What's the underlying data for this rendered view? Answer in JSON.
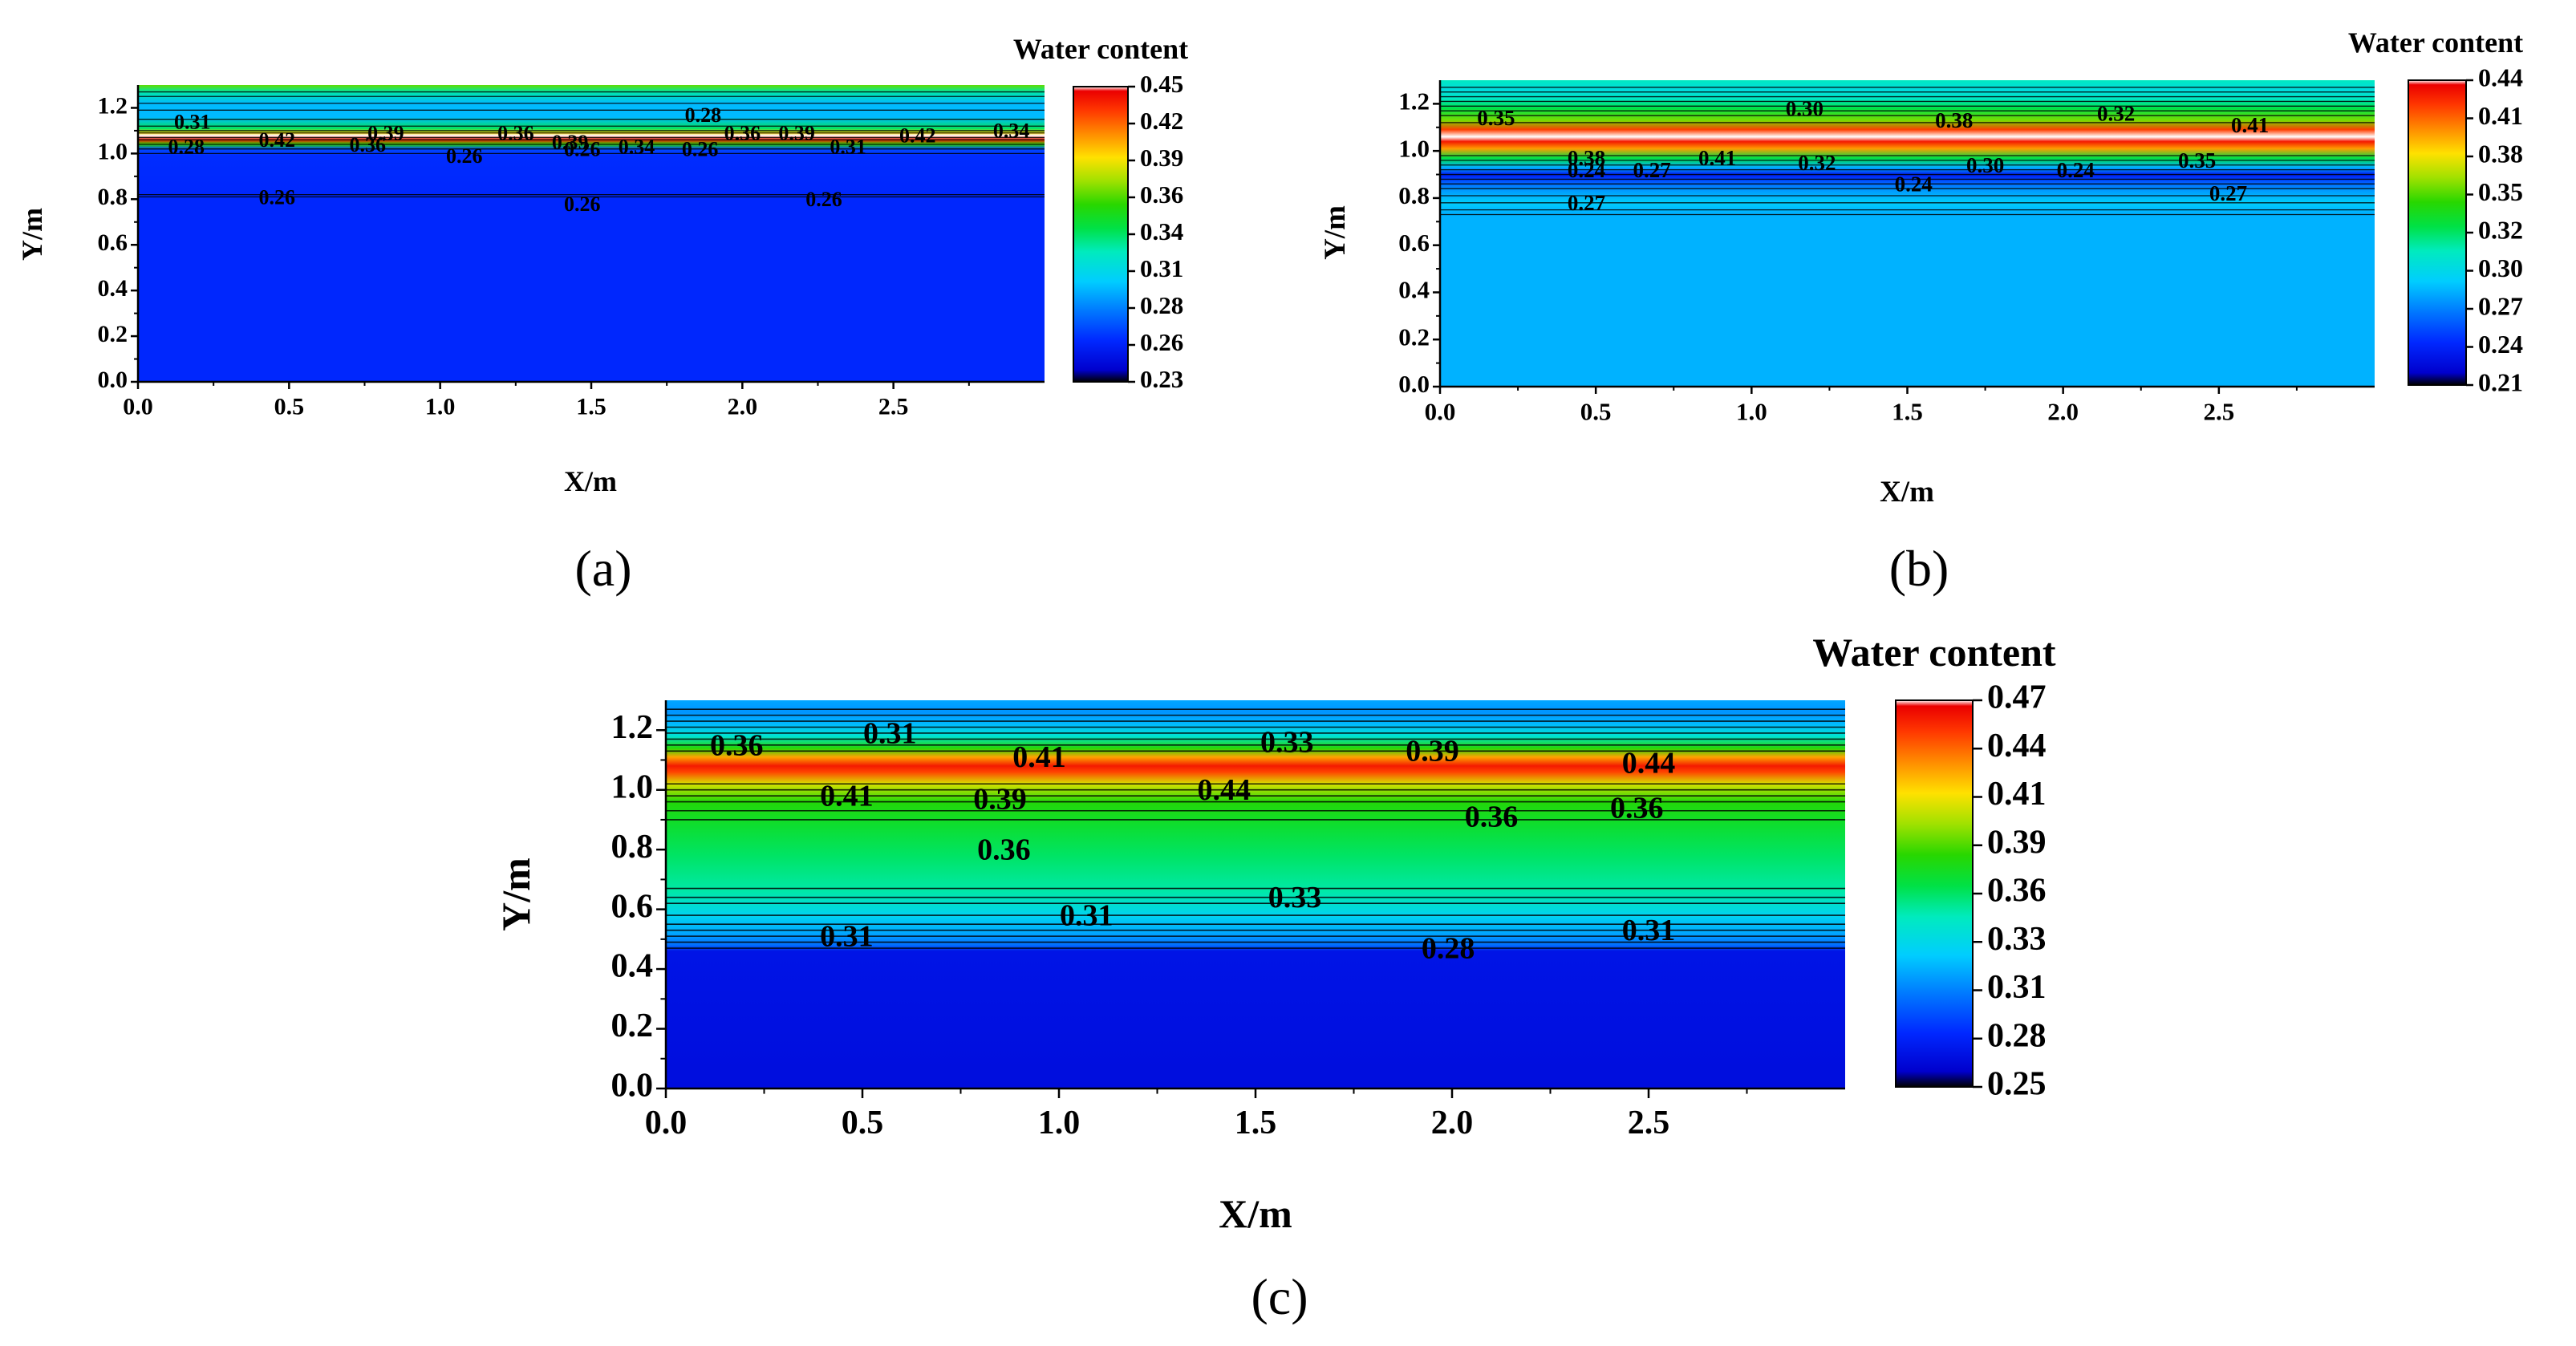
{
  "chart_data": [
    {
      "type": "heatmap",
      "panel": "(a)",
      "title": "",
      "xlabel": "X/m",
      "ylabel": "Y/m",
      "xlim": [
        0,
        3.0
      ],
      "ylim": [
        0,
        1.3
      ],
      "xticks": [
        "0.0",
        "0.5",
        "1.0",
        "1.5",
        "2.0",
        "2.5"
      ],
      "yticks": [
        "0.0",
        "0.2",
        "0.4",
        "0.6",
        "0.8",
        "1.0",
        "1.2"
      ],
      "colorbar": {
        "title": "Water content",
        "min": 0.23,
        "max": 0.45,
        "ticks": [
          "0.45",
          "0.42",
          "0.39",
          "0.36",
          "0.34",
          "0.31",
          "0.28",
          "0.26",
          "0.23"
        ]
      },
      "profile": [
        {
          "y": 0.0,
          "v": 0.26
        },
        {
          "y": 0.8,
          "v": 0.26
        },
        {
          "y": 0.81,
          "v": 0.262
        },
        {
          "y": 0.82,
          "v": 0.26
        },
        {
          "y": 0.99,
          "v": 0.262
        },
        {
          "y": 1.02,
          "v": 0.27
        },
        {
          "y": 1.04,
          "v": 0.36
        },
        {
          "y": 1.06,
          "v": 0.44
        },
        {
          "y": 1.08,
          "v": 0.45
        },
        {
          "y": 1.09,
          "v": 0.4
        },
        {
          "y": 1.11,
          "v": 0.34
        },
        {
          "y": 1.16,
          "v": 0.3
        },
        {
          "y": 1.22,
          "v": 0.3
        },
        {
          "y": 1.27,
          "v": 0.33
        },
        {
          "y": 1.3,
          "v": 0.37
        }
      ],
      "contour_levels": [
        0.81,
        0.82,
        1.0,
        1.02,
        1.04,
        1.06,
        1.07,
        1.09,
        1.1,
        1.12,
        1.15,
        1.19,
        1.22,
        1.25,
        1.27
      ],
      "labels": [
        {
          "text": "0.31",
          "x": 0.18,
          "y": 1.13
        },
        {
          "text": "0.28",
          "x": 0.16,
          "y": 1.02
        },
        {
          "text": "0.42",
          "x": 0.46,
          "y": 1.05
        },
        {
          "text": "0.39",
          "x": 0.82,
          "y": 1.08
        },
        {
          "text": "0.36",
          "x": 0.76,
          "y": 1.03
        },
        {
          "text": "0.26",
          "x": 1.08,
          "y": 0.98
        },
        {
          "text": "0.36",
          "x": 1.25,
          "y": 1.08
        },
        {
          "text": "0.39",
          "x": 1.43,
          "y": 1.04
        },
        {
          "text": "0.26",
          "x": 1.47,
          "y": 1.01
        },
        {
          "text": "0.34",
          "x": 1.65,
          "y": 1.02
        },
        {
          "text": "0.26",
          "x": 1.86,
          "y": 1.01
        },
        {
          "text": "0.28",
          "x": 1.87,
          "y": 1.16
        },
        {
          "text": "0.36",
          "x": 2.0,
          "y": 1.08
        },
        {
          "text": "0.39",
          "x": 2.18,
          "y": 1.08
        },
        {
          "text": "0.31",
          "x": 2.35,
          "y": 1.02
        },
        {
          "text": "0.42",
          "x": 2.58,
          "y": 1.07
        },
        {
          "text": "0.34",
          "x": 2.89,
          "y": 1.09
        },
        {
          "text": "0.26",
          "x": 0.46,
          "y": 0.8
        },
        {
          "text": "0.26",
          "x": 1.47,
          "y": 0.77
        },
        {
          "text": "0.26",
          "x": 2.27,
          "y": 0.79
        }
      ]
    },
    {
      "type": "heatmap",
      "panel": "(b)",
      "title": "",
      "xlabel": "X/m",
      "ylabel": "Y/m",
      "xlim": [
        0,
        3.0
      ],
      "ylim": [
        0,
        1.3
      ],
      "xticks": [
        "0.0",
        "0.5",
        "1.0",
        "1.5",
        "2.0",
        "2.5"
      ],
      "yticks": [
        "0.0",
        "0.2",
        "0.4",
        "0.6",
        "0.8",
        "1.0",
        "1.2"
      ],
      "colorbar": {
        "title": "Water content",
        "min": 0.21,
        "max": 0.44,
        "ticks": [
          "0.44",
          "0.41",
          "0.38",
          "0.35",
          "0.32",
          "0.30",
          "0.27",
          "0.24",
          "0.21"
        ]
      },
      "profile": [
        {
          "y": 0.0,
          "v": 0.281
        },
        {
          "y": 0.74,
          "v": 0.281
        },
        {
          "y": 0.78,
          "v": 0.29
        },
        {
          "y": 0.84,
          "v": 0.272
        },
        {
          "y": 0.88,
          "v": 0.25
        },
        {
          "y": 0.9,
          "v": 0.236
        },
        {
          "y": 0.93,
          "v": 0.28
        },
        {
          "y": 0.97,
          "v": 0.33
        },
        {
          "y": 1.01,
          "v": 0.4
        },
        {
          "y": 1.04,
          "v": 0.43
        },
        {
          "y": 1.06,
          "v": 0.44
        },
        {
          "y": 1.09,
          "v": 0.42
        },
        {
          "y": 1.13,
          "v": 0.36
        },
        {
          "y": 1.18,
          "v": 0.33
        },
        {
          "y": 1.22,
          "v": 0.31
        },
        {
          "y": 1.26,
          "v": 0.3
        },
        {
          "y": 1.3,
          "v": 0.31
        }
      ],
      "contour_levels": [
        0.73,
        0.75,
        0.78,
        0.81,
        0.84,
        0.86,
        0.88,
        0.9,
        0.92,
        0.94,
        0.96,
        0.98,
        1.12,
        1.15,
        1.17,
        1.19,
        1.21,
        1.23,
        1.25,
        1.27
      ],
      "labels": [
        {
          "text": "0.35",
          "x": 0.18,
          "y": 1.13
        },
        {
          "text": "0.30",
          "x": 1.17,
          "y": 1.17
        },
        {
          "text": "0.38",
          "x": 1.65,
          "y": 1.12
        },
        {
          "text": "0.32",
          "x": 2.17,
          "y": 1.15
        },
        {
          "text": "0.41",
          "x": 2.6,
          "y": 1.1
        },
        {
          "text": "0.38",
          "x": 0.47,
          "y": 0.96
        },
        {
          "text": "0.24",
          "x": 0.47,
          "y": 0.91
        },
        {
          "text": "0.27",
          "x": 0.68,
          "y": 0.91
        },
        {
          "text": "0.41",
          "x": 0.89,
          "y": 0.96
        },
        {
          "text": "0.32",
          "x": 1.21,
          "y": 0.94
        },
        {
          "text": "0.30",
          "x": 1.75,
          "y": 0.93
        },
        {
          "text": "0.24",
          "x": 2.04,
          "y": 0.91
        },
        {
          "text": "0.24",
          "x": 1.52,
          "y": 0.85
        },
        {
          "text": "0.35",
          "x": 2.43,
          "y": 0.95
        },
        {
          "text": "0.27",
          "x": 0.47,
          "y": 0.77
        },
        {
          "text": "0.27",
          "x": 2.53,
          "y": 0.81
        }
      ]
    },
    {
      "type": "heatmap",
      "panel": "(c)",
      "title": "",
      "xlabel": "X/m",
      "ylabel": "Y/m",
      "xlim": [
        0,
        3.0
      ],
      "ylim": [
        0,
        1.3
      ],
      "xticks": [
        "0.0",
        "0.5",
        "1.0",
        "1.5",
        "2.0",
        "2.5"
      ],
      "yticks": [
        "0.0",
        "0.2",
        "0.4",
        "0.6",
        "0.8",
        "1.0",
        "1.2"
      ],
      "colorbar": {
        "title": "Water content",
        "min": 0.25,
        "max": 0.47,
        "ticks": [
          "0.47",
          "0.44",
          "0.41",
          "0.39",
          "0.36",
          "0.33",
          "0.31",
          "0.28",
          "0.25"
        ]
      },
      "profile": [
        {
          "y": 0.0,
          "v": 0.266
        },
        {
          "y": 0.46,
          "v": 0.27
        },
        {
          "y": 0.48,
          "v": 0.3
        },
        {
          "y": 0.52,
          "v": 0.315
        },
        {
          "y": 0.58,
          "v": 0.33
        },
        {
          "y": 0.66,
          "v": 0.35
        },
        {
          "y": 0.78,
          "v": 0.36
        },
        {
          "y": 0.88,
          "v": 0.37
        },
        {
          "y": 0.96,
          "v": 0.38
        },
        {
          "y": 1.02,
          "v": 0.41
        },
        {
          "y": 1.06,
          "v": 0.45
        },
        {
          "y": 1.08,
          "v": 0.46
        },
        {
          "y": 1.11,
          "v": 0.43
        },
        {
          "y": 1.14,
          "v": 0.38
        },
        {
          "y": 1.18,
          "v": 0.34
        },
        {
          "y": 1.22,
          "v": 0.32
        },
        {
          "y": 1.26,
          "v": 0.31
        },
        {
          "y": 1.3,
          "v": 0.315
        }
      ],
      "contour_levels": [
        0.47,
        0.49,
        0.51,
        0.53,
        0.55,
        0.58,
        0.62,
        0.64,
        0.67,
        0.9,
        0.93,
        0.96,
        0.98,
        1.0,
        1.02,
        1.13,
        1.15,
        1.17,
        1.19,
        1.21,
        1.23,
        1.25,
        1.27
      ],
      "labels": [
        {
          "text": "0.36",
          "x": 0.18,
          "y": 1.14
        },
        {
          "text": "0.31",
          "x": 0.57,
          "y": 1.18
        },
        {
          "text": "0.41",
          "x": 0.95,
          "y": 1.1
        },
        {
          "text": "0.33",
          "x": 1.58,
          "y": 1.15
        },
        {
          "text": "0.39",
          "x": 1.95,
          "y": 1.12
        },
        {
          "text": "0.44",
          "x": 2.5,
          "y": 1.08
        },
        {
          "text": "0.41",
          "x": 0.46,
          "y": 0.97
        },
        {
          "text": "0.39",
          "x": 0.85,
          "y": 0.96
        },
        {
          "text": "0.44",
          "x": 1.42,
          "y": 0.99
        },
        {
          "text": "0.36",
          "x": 2.1,
          "y": 0.9
        },
        {
          "text": "0.36",
          "x": 2.47,
          "y": 0.93
        },
        {
          "text": "0.36",
          "x": 0.86,
          "y": 0.79
        },
        {
          "text": "0.31",
          "x": 1.07,
          "y": 0.57
        },
        {
          "text": "0.33",
          "x": 1.6,
          "y": 0.63
        },
        {
          "text": "0.31",
          "x": 0.46,
          "y": 0.5
        },
        {
          "text": "0.28",
          "x": 1.99,
          "y": 0.46
        },
        {
          "text": "0.31",
          "x": 2.5,
          "y": 0.52
        }
      ]
    }
  ]
}
